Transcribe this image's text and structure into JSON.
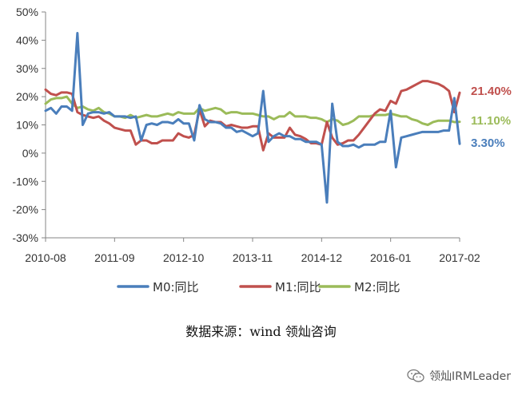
{
  "chart_data": {
    "type": "line",
    "title": "",
    "xlabel": "",
    "ylabel": "",
    "ylim": [
      -30,
      50
    ],
    "yticks": [
      "50%",
      "40%",
      "30%",
      "20%",
      "10%",
      "0%",
      "-10%",
      "-20%",
      "-30%"
    ],
    "xticks": [
      "2010-08",
      "2011-09",
      "2012-10",
      "2013-11",
      "2014-12",
      "2016-01",
      "2017-02"
    ],
    "legend_position": "bottom",
    "grid": false,
    "series": [
      {
        "name": "M0:同比",
        "color": "#4a7ebb",
        "end_label": "3.30%",
        "points": [
          [
            "2010-08",
            15
          ],
          [
            "2010-09",
            16
          ],
          [
            "2010-10",
            14
          ],
          [
            "2010-11",
            16.5
          ],
          [
            "2010-12",
            16.5
          ],
          [
            "2011-01",
            15
          ],
          [
            "2011-02",
            42.5
          ],
          [
            "2011-03",
            10
          ],
          [
            "2011-04",
            14
          ],
          [
            "2011-05",
            14.5
          ],
          [
            "2011-06",
            14.5
          ],
          [
            "2011-07",
            14
          ],
          [
            "2011-08",
            14.5
          ],
          [
            "2011-09",
            13
          ],
          [
            "2011-10",
            13
          ],
          [
            "2011-11",
            13
          ],
          [
            "2011-12",
            12.5
          ],
          [
            "2012-01",
            13
          ],
          [
            "2012-02",
            4.5
          ],
          [
            "2012-03",
            10
          ],
          [
            "2012-04",
            10.5
          ],
          [
            "2012-05",
            10
          ],
          [
            "2012-06",
            11
          ],
          [
            "2012-07",
            11
          ],
          [
            "2012-08",
            10.5
          ],
          [
            "2012-09",
            12
          ],
          [
            "2012-10",
            10.5
          ],
          [
            "2012-11",
            10.5
          ],
          [
            "2012-12",
            4.5
          ],
          [
            "2013-01",
            17
          ],
          [
            "2013-02",
            12
          ],
          [
            "2013-03",
            11
          ],
          [
            "2013-04",
            11
          ],
          [
            "2013-05",
            10.5
          ],
          [
            "2013-06",
            9
          ],
          [
            "2013-07",
            9
          ],
          [
            "2013-08",
            7.5
          ],
          [
            "2013-09",
            8
          ],
          [
            "2013-10",
            7
          ],
          [
            "2013-11",
            6
          ],
          [
            "2013-12",
            7
          ],
          [
            "2014-01",
            22
          ],
          [
            "2014-02",
            4
          ],
          [
            "2014-03",
            6
          ],
          [
            "2014-04",
            7
          ],
          [
            "2014-05",
            6
          ],
          [
            "2014-06",
            6
          ],
          [
            "2014-07",
            5
          ],
          [
            "2014-08",
            5
          ],
          [
            "2014-09",
            4
          ],
          [
            "2014-10",
            4
          ],
          [
            "2014-11",
            4
          ],
          [
            "2014-12",
            3
          ],
          [
            "2015-01",
            -17.5
          ],
          [
            "2015-02",
            17.5
          ],
          [
            "2015-03",
            4
          ],
          [
            "2015-04",
            2.5
          ],
          [
            "2015-05",
            2.5
          ],
          [
            "2015-06",
            3
          ],
          [
            "2015-07",
            2
          ],
          [
            "2015-08",
            3
          ],
          [
            "2015-09",
            3
          ],
          [
            "2015-10",
            3
          ],
          [
            "2015-11",
            4
          ],
          [
            "2015-12",
            4
          ],
          [
            "2016-01",
            15
          ],
          [
            "2016-02",
            -5
          ],
          [
            "2016-03",
            5.5
          ],
          [
            "2016-04",
            6
          ],
          [
            "2016-05",
            6.5
          ],
          [
            "2016-06",
            7
          ],
          [
            "2016-07",
            7.5
          ],
          [
            "2016-08",
            7.5
          ],
          [
            "2016-09",
            7.5
          ],
          [
            "2016-10",
            7.5
          ],
          [
            "2016-11",
            8
          ],
          [
            "2016-12",
            8
          ],
          [
            "2017-01",
            19.5
          ],
          [
            "2017-02",
            3.3
          ]
        ]
      },
      {
        "name": "M1:同比",
        "color": "#c0504d",
        "end_label": "21.40%",
        "points": [
          [
            "2010-08",
            22.5
          ],
          [
            "2010-09",
            21
          ],
          [
            "2010-10",
            20.5
          ],
          [
            "2010-11",
            21.5
          ],
          [
            "2010-12",
            21.5
          ],
          [
            "2011-01",
            21
          ],
          [
            "2011-02",
            14.5
          ],
          [
            "2011-03",
            13.5
          ],
          [
            "2011-04",
            13
          ],
          [
            "2011-05",
            12.5
          ],
          [
            "2011-06",
            13
          ],
          [
            "2011-07",
            11.5
          ],
          [
            "2011-08",
            10.5
          ],
          [
            "2011-09",
            9
          ],
          [
            "2011-10",
            8.5
          ],
          [
            "2011-11",
            8
          ],
          [
            "2011-12",
            8
          ],
          [
            "2012-01",
            3
          ],
          [
            "2012-02",
            4.5
          ],
          [
            "2012-03",
            4.5
          ],
          [
            "2012-04",
            3.5
          ],
          [
            "2012-05",
            3.5
          ],
          [
            "2012-06",
            4.5
          ],
          [
            "2012-07",
            4.5
          ],
          [
            "2012-08",
            4.5
          ],
          [
            "2012-09",
            7
          ],
          [
            "2012-10",
            6
          ],
          [
            "2012-11",
            5.5
          ],
          [
            "2012-12",
            6.5
          ],
          [
            "2013-01",
            15.5
          ],
          [
            "2013-02",
            9.5
          ],
          [
            "2013-03",
            11.5
          ],
          [
            "2013-04",
            11
          ],
          [
            "2013-05",
            11
          ],
          [
            "2013-06",
            9.5
          ],
          [
            "2013-07",
            10
          ],
          [
            "2013-08",
            9.5
          ],
          [
            "2013-09",
            9
          ],
          [
            "2013-10",
            9
          ],
          [
            "2013-11",
            9.5
          ],
          [
            "2013-12",
            9.5
          ],
          [
            "2014-01",
            1
          ],
          [
            "2014-02",
            7
          ],
          [
            "2014-03",
            5.5
          ],
          [
            "2014-04",
            5.5
          ],
          [
            "2014-05",
            5.5
          ],
          [
            "2014-06",
            9
          ],
          [
            "2014-07",
            6.5
          ],
          [
            "2014-08",
            6
          ],
          [
            "2014-09",
            5
          ],
          [
            "2014-10",
            3.5
          ],
          [
            "2014-11",
            3.5
          ],
          [
            "2014-12",
            3
          ],
          [
            "2015-01",
            11
          ],
          [
            "2015-02",
            5.5
          ],
          [
            "2015-03",
            3
          ],
          [
            "2015-04",
            3.5
          ],
          [
            "2015-05",
            4.5
          ],
          [
            "2015-06",
            4.5
          ],
          [
            "2015-07",
            6.5
          ],
          [
            "2015-08",
            9
          ],
          [
            "2015-09",
            11.5
          ],
          [
            "2015-10",
            14
          ],
          [
            "2015-11",
            15.5
          ],
          [
            "2015-12",
            15
          ],
          [
            "2016-01",
            18.5
          ],
          [
            "2016-02",
            17.5
          ],
          [
            "2016-03",
            22
          ],
          [
            "2016-04",
            22.5
          ],
          [
            "2016-05",
            23.5
          ],
          [
            "2016-06",
            24.5
          ],
          [
            "2016-07",
            25.5
          ],
          [
            "2016-08",
            25.5
          ],
          [
            "2016-09",
            25
          ],
          [
            "2016-10",
            24.5
          ],
          [
            "2016-11",
            23.5
          ],
          [
            "2016-12",
            22
          ],
          [
            "2017-01",
            14.5
          ],
          [
            "2017-02",
            21.4
          ]
        ]
      },
      {
        "name": "M2:同比",
        "color": "#9bbb59",
        "end_label": "11.10%",
        "points": [
          [
            "2010-08",
            17.5
          ],
          [
            "2010-09",
            19
          ],
          [
            "2010-10",
            19.5
          ],
          [
            "2010-11",
            19.5
          ],
          [
            "2010-12",
            20
          ],
          [
            "2011-01",
            17.5
          ],
          [
            "2011-02",
            16
          ],
          [
            "2011-03",
            16.5
          ],
          [
            "2011-04",
            15.5
          ],
          [
            "2011-05",
            15
          ],
          [
            "2011-06",
            16
          ],
          [
            "2011-07",
            14.5
          ],
          [
            "2011-08",
            14
          ],
          [
            "2011-09",
            13
          ],
          [
            "2011-10",
            13
          ],
          [
            "2011-11",
            12.5
          ],
          [
            "2011-12",
            13.5
          ],
          [
            "2012-01",
            12.5
          ],
          [
            "2012-02",
            13
          ],
          [
            "2012-03",
            13.5
          ],
          [
            "2012-04",
            13
          ],
          [
            "2012-05",
            13
          ],
          [
            "2012-06",
            13.5
          ],
          [
            "2012-07",
            14
          ],
          [
            "2012-08",
            13.5
          ],
          [
            "2012-09",
            14.5
          ],
          [
            "2012-10",
            14
          ],
          [
            "2012-11",
            14
          ],
          [
            "2012-12",
            14
          ],
          [
            "2013-01",
            16
          ],
          [
            "2013-02",
            15
          ],
          [
            "2013-03",
            15.5
          ],
          [
            "2013-04",
            16
          ],
          [
            "2013-05",
            15.5
          ],
          [
            "2013-06",
            14
          ],
          [
            "2013-07",
            14.5
          ],
          [
            "2013-08",
            14.5
          ],
          [
            "2013-09",
            14
          ],
          [
            "2013-10",
            14
          ],
          [
            "2013-11",
            14
          ],
          [
            "2013-12",
            13.5
          ],
          [
            "2014-01",
            13
          ],
          [
            "2014-02",
            13
          ],
          [
            "2014-03",
            12
          ],
          [
            "2014-04",
            13
          ],
          [
            "2014-05",
            13
          ],
          [
            "2014-06",
            14.5
          ],
          [
            "2014-07",
            13
          ],
          [
            "2014-08",
            13
          ],
          [
            "2014-09",
            13
          ],
          [
            "2014-10",
            12.5
          ],
          [
            "2014-11",
            12.5
          ],
          [
            "2014-12",
            12
          ],
          [
            "2015-01",
            11
          ],
          [
            "2015-02",
            12
          ],
          [
            "2015-03",
            11.5
          ],
          [
            "2015-04",
            10
          ],
          [
            "2015-05",
            10.5
          ],
          [
            "2015-06",
            11.5
          ],
          [
            "2015-07",
            13
          ],
          [
            "2015-08",
            13
          ],
          [
            "2015-09",
            13
          ],
          [
            "2015-10",
            13.5
          ],
          [
            "2015-11",
            13.5
          ],
          [
            "2015-12",
            13.5
          ],
          [
            "2016-01",
            14
          ],
          [
            "2016-02",
            13.5
          ],
          [
            "2016-03",
            13
          ],
          [
            "2016-04",
            13
          ],
          [
            "2016-05",
            12
          ],
          [
            "2016-06",
            11.5
          ],
          [
            "2016-07",
            10.5
          ],
          [
            "2016-08",
            10
          ],
          [
            "2016-09",
            11
          ],
          [
            "2016-10",
            11.5
          ],
          [
            "2016-11",
            11.5
          ],
          [
            "2016-12",
            11.5
          ],
          [
            "2017-01",
            11
          ],
          [
            "2017-02",
            11.1
          ]
        ]
      }
    ]
  },
  "source_text": "数据来源：wind 领灿咨询",
  "watermark": {
    "text": "领灿IRMLeader",
    "icon": "wechat-icon"
  }
}
